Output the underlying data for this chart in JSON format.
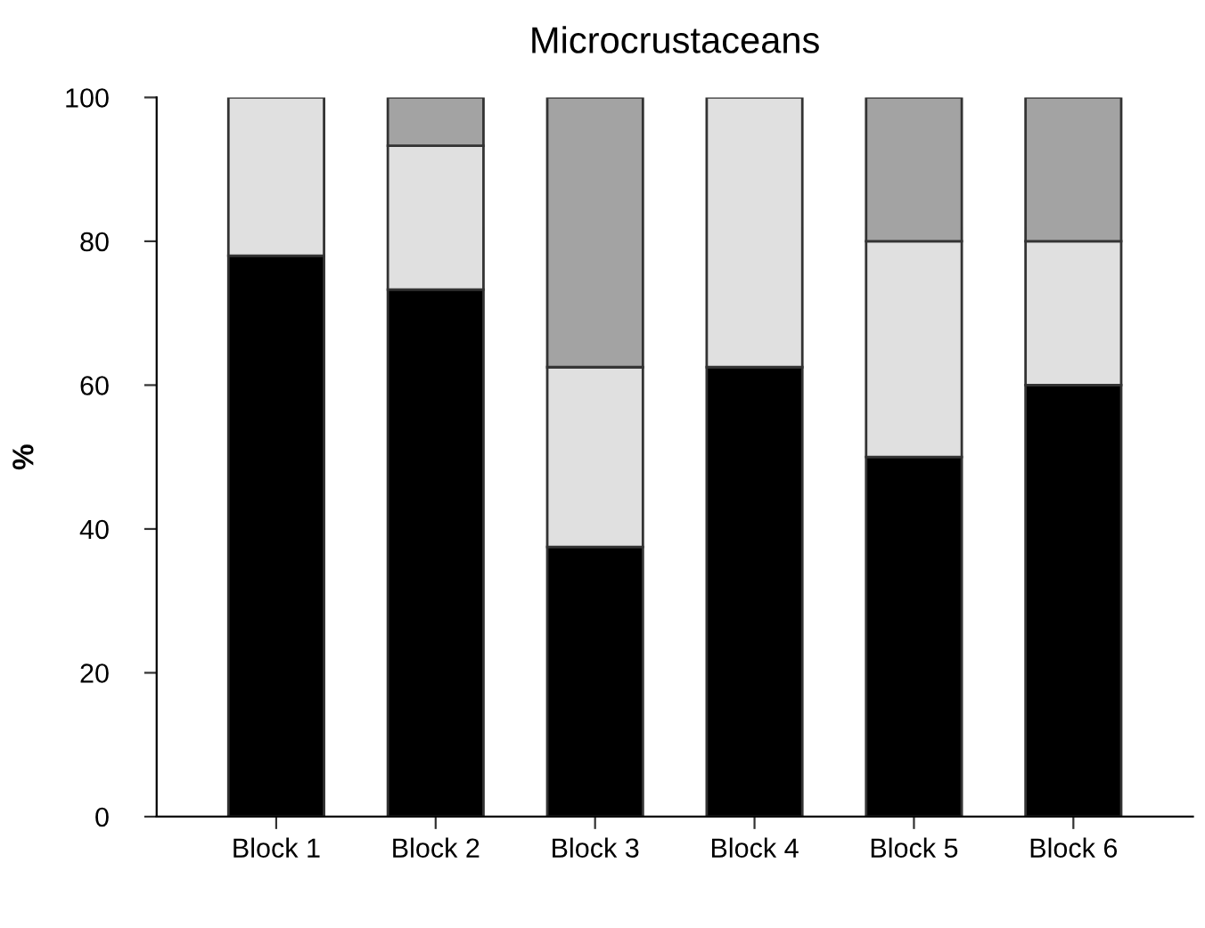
{
  "chart_data": {
    "type": "bar",
    "title": "Microcrustaceans",
    "ylabel": "%",
    "stacked": true,
    "categories": [
      "Block 1",
      "Block 2",
      "Block 3",
      "Block 4",
      "Block 5",
      "Block 6"
    ],
    "series": [
      {
        "color": "#000000",
        "values": [
          78,
          73.3,
          37.5,
          62.5,
          50,
          60
        ]
      },
      {
        "color": "#e0e0e0",
        "values": [
          22,
          20,
          25,
          37.5,
          30,
          20
        ]
      },
      {
        "color": "#a3a3a3",
        "values": [
          null,
          6.7,
          37.5,
          null,
          20,
          20
        ]
      }
    ],
    "ylim": [
      0,
      100
    ],
    "yticks": [
      0,
      20,
      40,
      60,
      80,
      100
    ],
    "grid": false
  }
}
